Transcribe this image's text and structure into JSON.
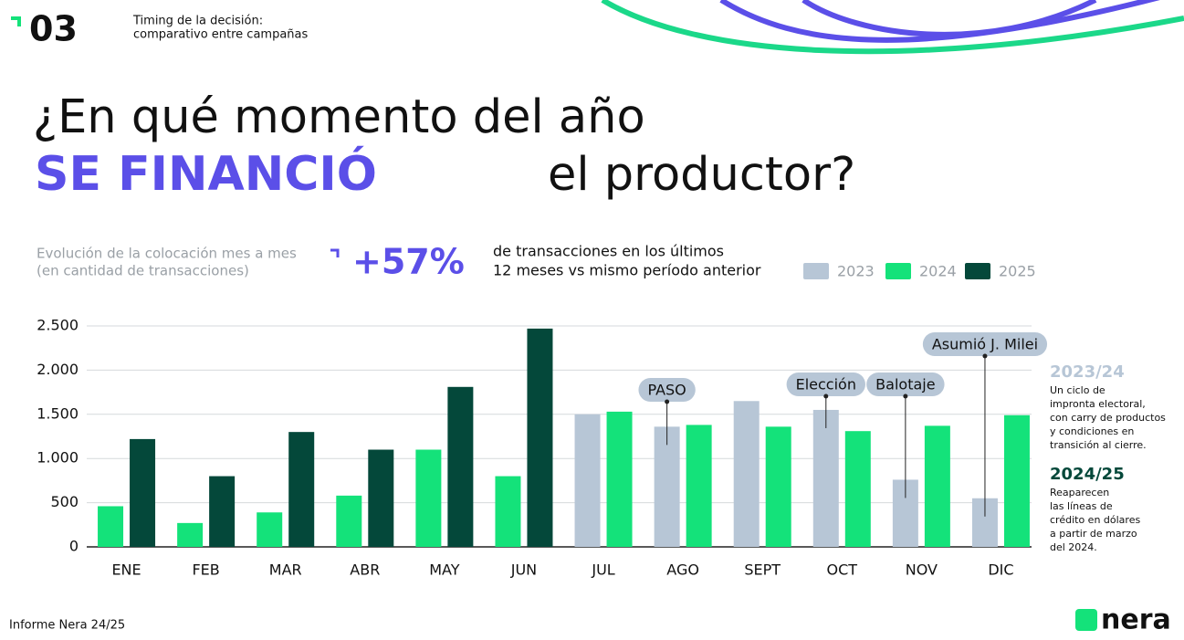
{
  "header": {
    "number": "03",
    "caption": [
      "Timing de la decisión:",
      "comparativo entre campañas"
    ]
  },
  "headline": {
    "line1": "¿En qué momento del año",
    "highlight": "SE FINANCIÓ",
    "rest": "el productor?"
  },
  "stat": {
    "value": "+57%",
    "text": [
      "de transacciones en los últimos",
      "12 meses vs mismo período anterior"
    ]
  },
  "notes": [
    {
      "title": "2023/24",
      "lines": [
        "Un ciclo de",
        "impronta electoral,",
        "con carry de productos",
        "y condiciones en",
        "transición al cierre."
      ]
    },
    {
      "title": "2024/25",
      "lines": [
        "Reaparecen",
        "las líneas de",
        "crédito en dólares",
        "a partir de marzo",
        "del 2024."
      ]
    }
  ],
  "footer": {
    "left": "Informe Nera 24/25",
    "brand": "nera"
  },
  "chart_data": {
    "type": "bar",
    "subtitle": [
      "Evolución de la colocación mes a mes",
      "(en cantidad de transacciones)"
    ],
    "categories": [
      "ENE",
      "FEB",
      "MAR",
      "ABR",
      "MAY",
      "JUN",
      "JUL",
      "AGO",
      "SEPT",
      "OCT",
      "NOV",
      "DIC"
    ],
    "series": [
      {
        "name": "2023",
        "color": "#b7c6d6",
        "values": [
          null,
          null,
          null,
          null,
          null,
          null,
          1500,
          1360,
          1650,
          1550,
          760,
          550
        ]
      },
      {
        "name": "2024",
        "color": "#14e27a",
        "values": [
          460,
          270,
          390,
          580,
          1100,
          800,
          1530,
          1380,
          1360,
          1310,
          1370,
          1490
        ]
      },
      {
        "name": "2025",
        "color": "#04483a",
        "values": [
          1220,
          800,
          1300,
          1100,
          1810,
          2470,
          null,
          null,
          null,
          null,
          null,
          null
        ]
      }
    ],
    "ylim": [
      0,
      2500
    ],
    "yticks": [
      0,
      500,
      {
        "value": 1000,
        "label": "1.000"
      },
      {
        "value": 1500,
        "label": "1.500"
      },
      {
        "value": 2000,
        "label": "2.000"
      },
      {
        "value": 2500,
        "label": "2.500"
      }
    ],
    "grid": true,
    "annotations": [
      "PASO",
      "Elección",
      "Balotaje",
      "Asumió J. Milei"
    ]
  }
}
